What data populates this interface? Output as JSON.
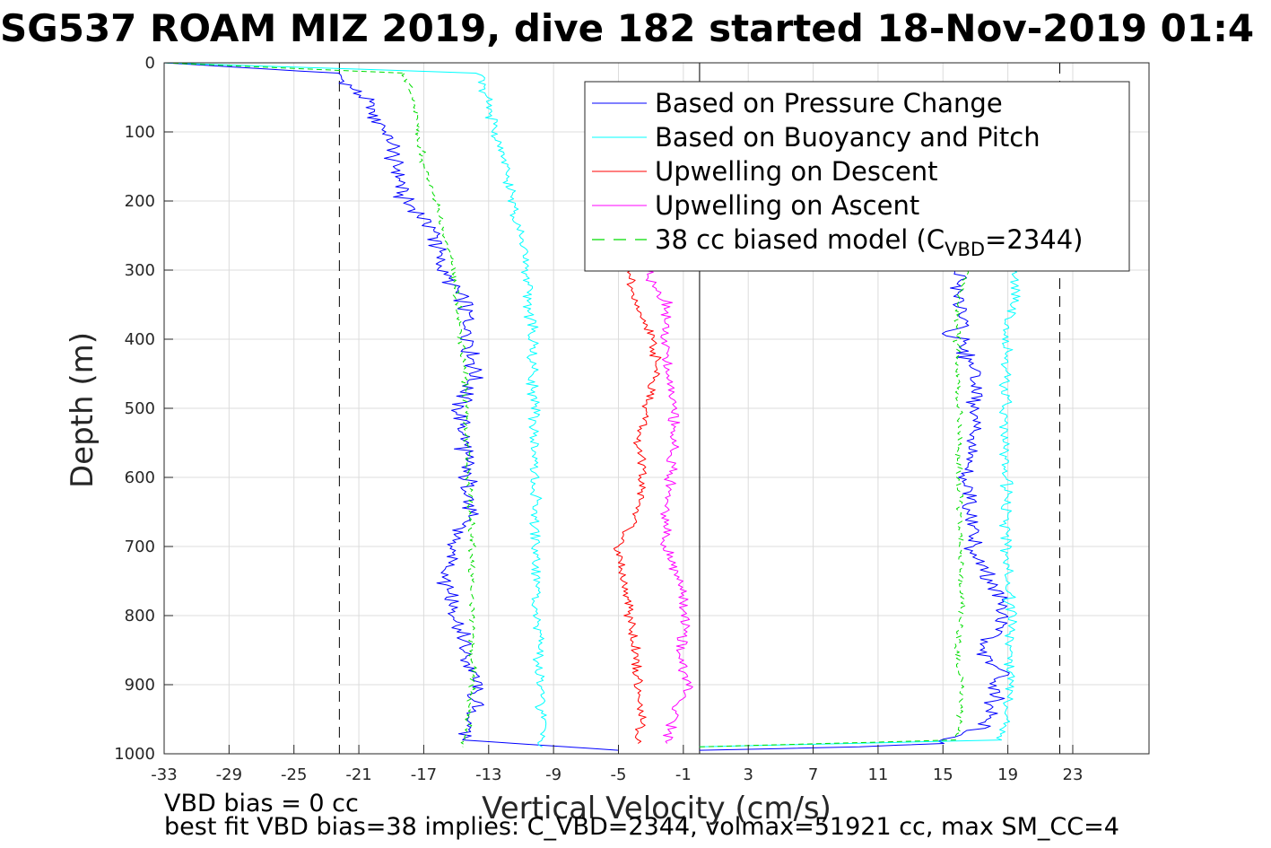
{
  "chart_data": {
    "type": "line",
    "title": "SG537 ROAM MIZ 2019, dive 182 started 18-Nov-2019 01:4",
    "xlabel": "Vertical Velocity (cm/s)",
    "ylabel": "Depth (m)",
    "xlim": [
      -33,
      27.7
    ],
    "ylim": [
      1000,
      0
    ],
    "y_reversed": true,
    "grid": true,
    "legend_position": "top-right",
    "xticks": [
      -33,
      -29,
      -25,
      -21,
      -17,
      -13,
      -9,
      -5,
      -1,
      3,
      7,
      11,
      15,
      19,
      23
    ],
    "yticks": [
      0,
      100,
      200,
      300,
      400,
      500,
      600,
      700,
      800,
      900,
      1000
    ],
    "reference_lines": [
      {
        "x": -22.2,
        "style": "dashed",
        "color": "#000000"
      },
      {
        "x": 0,
        "style": "solid",
        "color": "#000000"
      },
      {
        "x": 22.2,
        "style": "dashed",
        "color": "#000000"
      }
    ],
    "series": [
      {
        "name": "Based on Pressure Change",
        "color": "#0000ff",
        "style": "solid",
        "segments": [
          {
            "depth": [
              0,
              15,
              50,
              100,
              150,
              200,
              230,
              250,
              270,
              300,
              350,
              400,
              450,
              500,
              550,
              600,
              650,
              700,
              750,
              800,
              850,
              900,
              950,
              980,
              995
            ],
            "velocity": [
              -33,
              -22.5,
              -20.8,
              -19.3,
              -18.7,
              -18.2,
              -16.8,
              -16.2,
              -16.1,
              -15.8,
              -14.5,
              -14.2,
              -13.8,
              -14.8,
              -14.5,
              -14.3,
              -14.2,
              -15.3,
              -15.5,
              -15.0,
              -14.6,
              -13.8,
              -14.0,
              -14.6,
              -5
            ]
          },
          {
            "depth": [
              995,
              990,
              985,
              960,
              920,
              880,
              850,
              820,
              780,
              740,
              700,
              650,
              600,
              550,
              500,
              450,
              420,
              400,
              395,
              380,
              350,
              320,
              300
            ],
            "velocity": [
              0,
              10,
              14.5,
              17.5,
              18.2,
              18.6,
              17.3,
              18.5,
              18.5,
              17.6,
              16.8,
              16.8,
              16.5,
              16.8,
              17.0,
              16.8,
              16.5,
              16.2,
              15,
              16.5,
              16.0,
              15.9,
              15.7
            ]
          }
        ]
      },
      {
        "name": "Based on Buoyancy and Pitch",
        "color": "#00ffff",
        "style": "solid",
        "segments": [
          {
            "depth": [
              0,
              15,
              25,
              50,
              100,
              150,
              200,
              250,
              300,
              350,
              400,
              450,
              500,
              600,
              700,
              800,
              900,
              950,
              990
            ],
            "velocity": [
              -33,
              -13.5,
              -13.3,
              -13.2,
              -12.6,
              -12.0,
              -11.5,
              -11.0,
              -10.7,
              -10.5,
              -10.3,
              -10.3,
              -10.2,
              -10.2,
              -10.1,
              -10.0,
              -9.8,
              -9.7,
              -9.7
            ]
          },
          {
            "depth": [
              990,
              980,
              900,
              850,
              800,
              750,
              700,
              600,
              500,
              400,
              390,
              350,
              320,
              300
            ],
            "velocity": [
              0,
              18.6,
              19.2,
              19.0,
              19.3,
              19.0,
              18.9,
              18.9,
              18.8,
              19.0,
              18.8,
              19.4,
              19.4,
              19.3
            ]
          }
        ]
      },
      {
        "name": "Upwelling on Descent",
        "color": "#ff0000",
        "style": "solid",
        "segments": [
          {
            "depth": [
              300,
              350,
              400,
              450,
              500,
              550,
              600,
              650,
              700,
              750,
              800,
              850,
              900,
              950,
              985
            ],
            "velocity": [
              -4.3,
              -4.0,
              -2.9,
              -2.6,
              -3.3,
              -3.8,
              -3.5,
              -3.8,
              -5.0,
              -4.8,
              -4.3,
              -4.0,
              -3.8,
              -3.5,
              -3.8
            ]
          }
        ]
      },
      {
        "name": "Upwelling on Ascent",
        "color": "#ff00ff",
        "style": "solid",
        "segments": [
          {
            "depth": [
              300,
              350,
              400,
              450,
              500,
              550,
              600,
              650,
              700,
              750,
              800,
              850,
              900,
              950,
              985
            ],
            "velocity": [
              -3.3,
              -2.0,
              -2.2,
              -2.0,
              -1.5,
              -1.6,
              -1.8,
              -2.0,
              -2.2,
              -1.2,
              -0.8,
              -1.2,
              -0.7,
              -1.6,
              -2.0
            ]
          }
        ]
      },
      {
        "name": "38 cc biased model (C_VBD=2344)",
        "color": "#00dd00",
        "style": "dashed",
        "segments": [
          {
            "depth": [
              0,
              15,
              50,
              100,
              150,
              200,
              250,
              300,
              350,
              400,
              450,
              500,
              600,
              700,
              800,
              900,
              950,
              990
            ],
            "velocity": [
              -33,
              -18.3,
              -17.6,
              -17.3,
              -17.0,
              -16.3,
              -15.7,
              -15.2,
              -14.9,
              -14.7,
              -14.5,
              -14.4,
              -14.2,
              -14.0,
              -14.0,
              -14.0,
              -14.2,
              -14.6
            ]
          },
          {
            "depth": [
              990,
              980,
              900,
              850,
              800,
              700,
              600,
              500,
              450,
              400,
              350,
              300
            ],
            "velocity": [
              0,
              15.9,
              16.2,
              15.8,
              16.2,
              16.1,
              16.0,
              16.0,
              15.9,
              15.9,
              15.9,
              16.5
            ]
          }
        ]
      }
    ]
  },
  "title": "SG537 ROAM MIZ 2019, dive 182 started 18-Nov-2019 01:4",
  "axes": {
    "xlabel": "Vertical Velocity (cm/s)",
    "ylabel": "Depth (m)",
    "xtick_labels": [
      "-33",
      "-29",
      "-25",
      "-21",
      "-17",
      "-13",
      "-9",
      "-5",
      "-1",
      "3",
      "7",
      "11",
      "15",
      "19",
      "23"
    ],
    "ytick_labels": [
      "0",
      "100",
      "200",
      "300",
      "400",
      "500",
      "600",
      "700",
      "800",
      "900",
      "1000"
    ]
  },
  "legend": {
    "items": [
      "Based on Pressure Change",
      "Based on Buoyancy and Pitch",
      "Upwelling on Descent",
      "Upwelling on Ascent",
      "38 cc biased model (C"
    ],
    "last_item_subscript": "VBD",
    "last_item_suffix": "=2344)"
  },
  "footer": {
    "line1": "VBD bias = 0 cc",
    "line2": "best fit VBD bias=38 implies: C_VBD=2344, volmax=51921 cc, max SM_CC=4"
  }
}
